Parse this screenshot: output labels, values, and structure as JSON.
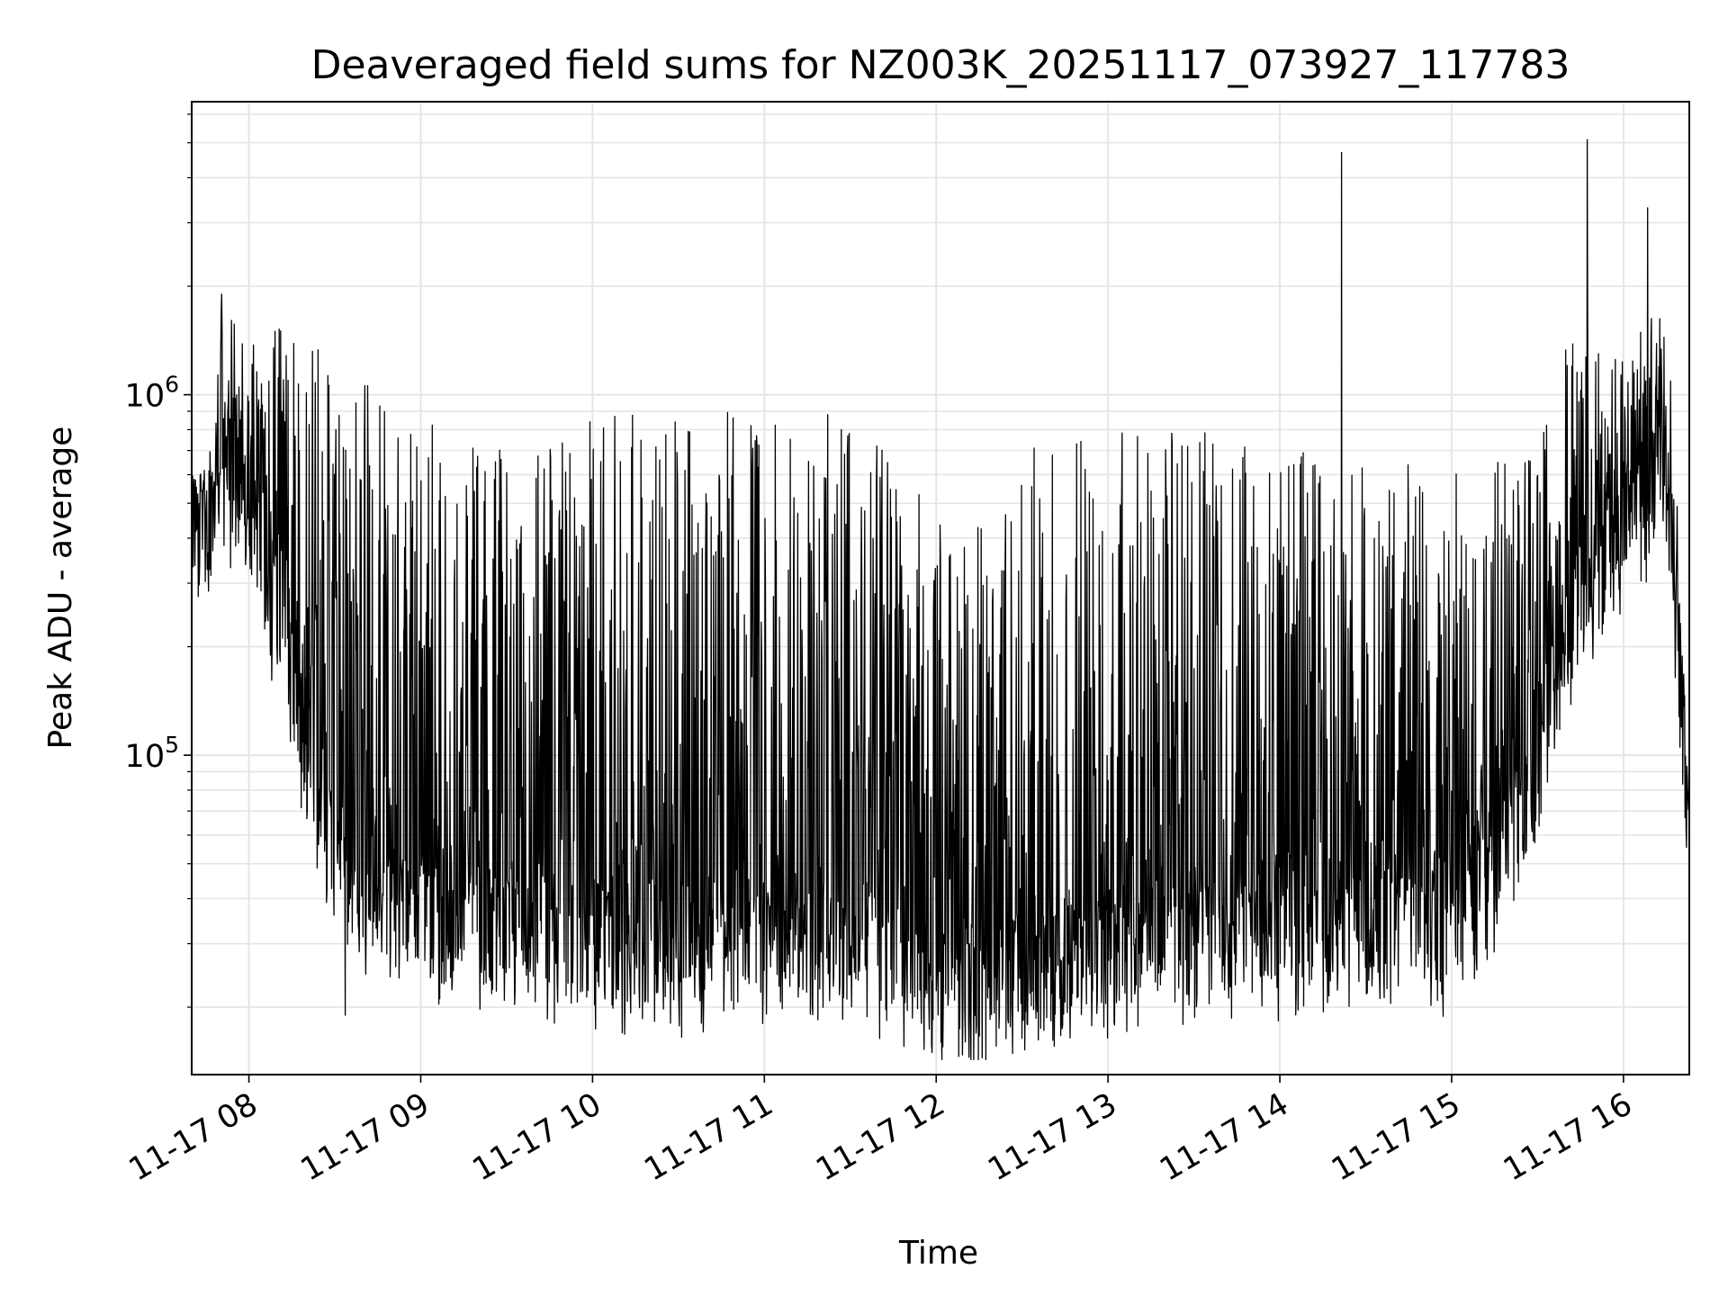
{
  "chart_data": {
    "type": "line",
    "title": "Deaveraged field sums for NZ003K_20251117_073927_117783",
    "xlabel": "Time",
    "ylabel": "Peak ADU - average",
    "yscale": "log",
    "ylim": [
      13000,
      6500000
    ],
    "xlim_hours": [
      7.667,
      16.383
    ],
    "grid": true,
    "line_color": "#000000",
    "grid_color": "#e5e5e5",
    "x_ticks": [
      {
        "hour": 8,
        "label": "11-17 08"
      },
      {
        "hour": 9,
        "label": "11-17 09"
      },
      {
        "hour": 10,
        "label": "11-17 10"
      },
      {
        "hour": 11,
        "label": "11-17 11"
      },
      {
        "hour": 12,
        "label": "11-17 12"
      },
      {
        "hour": 13,
        "label": "11-17 13"
      },
      {
        "hour": 14,
        "label": "11-17 14"
      },
      {
        "hour": 15,
        "label": "11-17 15"
      },
      {
        "hour": 16,
        "label": "11-17 16"
      }
    ],
    "y_major_ticks": [
      {
        "value": 100000,
        "base": "10",
        "exp": "5"
      },
      {
        "value": 1000000,
        "base": "10",
        "exp": "6"
      }
    ],
    "series": [
      {
        "name": "deaveraged field sum",
        "envelope": [
          {
            "hour": 7.667,
            "baseline": 500000,
            "peak": 600000
          },
          {
            "hour": 7.8,
            "baseline": 550000,
            "peak": 650000
          },
          {
            "hour": 7.83,
            "baseline": 800000,
            "peak": 1900000
          },
          {
            "hour": 8.0,
            "baseline": 600000,
            "peak": 1400000
          },
          {
            "hour": 8.2,
            "baseline": 250000,
            "peak": 1600000
          },
          {
            "hour": 8.35,
            "baseline": 120000,
            "peak": 1500000
          },
          {
            "hour": 8.5,
            "baseline": 60000,
            "peak": 1200000
          },
          {
            "hour": 8.7,
            "baseline": 50000,
            "peak": 1100000
          },
          {
            "hour": 8.9,
            "baseline": 45000,
            "peak": 900000
          },
          {
            "hour": 9.2,
            "baseline": 40000,
            "peak": 800000
          },
          {
            "hour": 9.6,
            "baseline": 40000,
            "peak": 800000
          },
          {
            "hour": 10.0,
            "baseline": 38000,
            "peak": 900000
          },
          {
            "hour": 10.5,
            "baseline": 36000,
            "peak": 900000
          },
          {
            "hour": 11.0,
            "baseline": 37000,
            "peak": 900000
          },
          {
            "hour": 11.5,
            "baseline": 38000,
            "peak": 900000
          },
          {
            "hour": 11.85,
            "baseline": 30000,
            "peak": 600000
          },
          {
            "hour": 12.1,
            "baseline": 25000,
            "peak": 400000
          },
          {
            "hour": 12.5,
            "baseline": 30000,
            "peak": 700000
          },
          {
            "hour": 13.0,
            "baseline": 35000,
            "peak": 800000
          },
          {
            "hour": 13.5,
            "baseline": 40000,
            "peak": 800000
          },
          {
            "hour": 14.0,
            "baseline": 40000,
            "peak": 700000
          },
          {
            "hour": 14.5,
            "baseline": 40000,
            "peak": 700000
          },
          {
            "hour": 15.0,
            "baseline": 40000,
            "peak": 600000
          },
          {
            "hour": 15.4,
            "baseline": 80000,
            "peak": 700000
          },
          {
            "hour": 15.7,
            "baseline": 300000,
            "peak": 1500000
          },
          {
            "hour": 16.0,
            "baseline": 500000,
            "peak": 1300000
          },
          {
            "hour": 16.25,
            "baseline": 800000,
            "peak": 2000000
          },
          {
            "hour": 16.383,
            "baseline": 70000,
            "peak": 100000
          }
        ],
        "notable_spikes": [
          {
            "hour": 14.36,
            "value": 4700000
          },
          {
            "hour": 15.79,
            "value": 5100000
          },
          {
            "hour": 16.14,
            "value": 3300000
          },
          {
            "hour": 7.84,
            "value": 1900000
          },
          {
            "hour": 8.56,
            "value": 19000
          }
        ]
      }
    ]
  }
}
